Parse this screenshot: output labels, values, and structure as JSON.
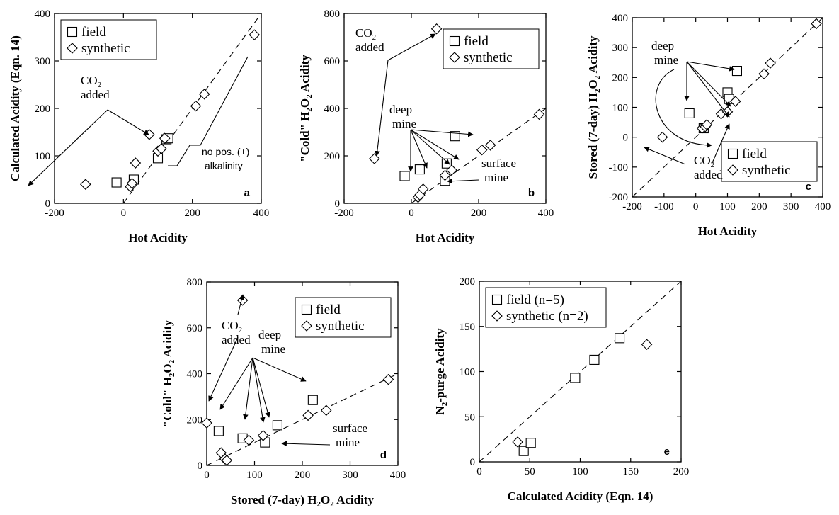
{
  "chart_data": [
    {
      "id": "a",
      "type": "scatter",
      "panel_label": "a",
      "xlabel": "Hot Acidity",
      "ylabel": "Calculated Acidity (Eqn. 14)",
      "xlim": [
        -200,
        400
      ],
      "ylim": [
        0,
        400
      ],
      "xticks": [
        -200,
        0,
        200,
        400
      ],
      "yticks": [
        0,
        100,
        200,
        300,
        400
      ],
      "legend": [
        "field",
        "synthetic"
      ],
      "legend_position": "top-left",
      "series": [
        {
          "name": "field",
          "marker": "square",
          "x": [
            -20,
            30,
            100,
            125,
            130
          ],
          "y": [
            44,
            50,
            95,
            135,
            137
          ]
        },
        {
          "name": "synthetic",
          "marker": "diamond",
          "x": [
            -110,
            20,
            25,
            35,
            75,
            100,
            110,
            120,
            210,
            235,
            380
          ],
          "y": [
            40,
            35,
            42,
            85,
            145,
            110,
            115,
            137,
            205,
            230,
            355
          ]
        }
      ],
      "reference_line": "1:1",
      "annotations": [
        {
          "text": "CO",
          "sub": "2",
          "text2": "added"
        },
        {
          "text": "no pos. (+)",
          "text2": "alkalinity"
        }
      ]
    },
    {
      "id": "b",
      "type": "scatter",
      "panel_label": "b",
      "xlabel": "Hot Acidity",
      "ylabel": "\"Cold\" H2O2 Acidity",
      "ylabel_parts": [
        "\"Cold\" H",
        "2",
        "O",
        "2",
        " Acidity"
      ],
      "xlim": [
        -200,
        400
      ],
      "ylim": [
        0,
        800
      ],
      "xticks": [
        -200,
        0,
        200,
        400
      ],
      "yticks": [
        0,
        200,
        400,
        600,
        800
      ],
      "legend": [
        "field",
        "synthetic"
      ],
      "legend_position": "top-right",
      "series": [
        {
          "name": "field",
          "marker": "square",
          "x": [
            -20,
            25,
            100,
            105,
            130
          ],
          "y": [
            115,
            143,
            95,
            168,
            283
          ]
        },
        {
          "name": "synthetic",
          "marker": "diamond",
          "x": [
            -110,
            20,
            25,
            35,
            75,
            100,
            120,
            210,
            235,
            380
          ],
          "y": [
            188,
            25,
            35,
            60,
            735,
            118,
            140,
            225,
            245,
            375
          ]
        }
      ],
      "reference_line": "1:1",
      "annotations": [
        {
          "text": "CO",
          "sub": "2",
          "text2": "added"
        },
        {
          "text": "deep",
          "text2": "mine"
        },
        {
          "text": "surface",
          "text2": "mine"
        }
      ]
    },
    {
      "id": "c",
      "type": "scatter",
      "panel_label": "c",
      "xlabel": "Hot Acidity",
      "ylabel": "Stored (7-day)  H2O2 Acidity",
      "ylabel_parts": [
        "Stored (7-day)  H",
        "2",
        "O",
        "2",
        " Acidity"
      ],
      "xlim": [
        -200,
        400
      ],
      "ylim": [
        -200,
        400
      ],
      "xticks": [
        -200,
        -100,
        0,
        100,
        200,
        300,
        400
      ],
      "yticks": [
        -200,
        -100,
        0,
        100,
        200,
        300,
        400
      ],
      "legend": [
        "field",
        "synthetic"
      ],
      "legend_position": "bottom-right",
      "series": [
        {
          "name": "field",
          "marker": "square",
          "x": [
            -20,
            25,
            100,
            105,
            130
          ],
          "y": [
            80,
            30,
            150,
            128,
            222
          ]
        },
        {
          "name": "synthetic",
          "marker": "diamond",
          "x": [
            -105,
            20,
            30,
            35,
            80,
            100,
            125,
            215,
            235,
            380
          ],
          "y": [
            0,
            30,
            35,
            42,
            78,
            85,
            120,
            212,
            248,
            380
          ]
        }
      ],
      "reference_line": "1:1",
      "annotations": [
        {
          "text": "deep",
          "text2": "mine"
        },
        {
          "text": "CO",
          "sub": "2",
          "text2": "added"
        }
      ]
    },
    {
      "id": "d",
      "type": "scatter",
      "panel_label": "d",
      "xlabel": "Stored (7-day) H2O2 Acidity",
      "xlabel_parts": [
        "Stored (7-day) H",
        "2",
        "O",
        "2",
        " Acidity"
      ],
      "ylabel": "\"Cold\" H2O2 Acidity",
      "ylabel_parts": [
        "\"Cold\" H",
        "2",
        "O",
        "2",
        " Acidity"
      ],
      "xlim": [
        0,
        400
      ],
      "ylim": [
        0,
        800
      ],
      "xticks": [
        0,
        100,
        200,
        300,
        400
      ],
      "yticks": [
        0,
        200,
        400,
        600,
        800
      ],
      "legend": [
        "field",
        "synthetic"
      ],
      "legend_position": "top-right",
      "series": [
        {
          "name": "field",
          "marker": "square",
          "x": [
            25,
            75,
            122,
            148,
            222
          ],
          "y": [
            150,
            118,
            100,
            175,
            285
          ]
        },
        {
          "name": "synthetic",
          "marker": "diamond",
          "x": [
            0,
            30,
            38,
            42,
            75,
            88,
            118,
            212,
            250,
            380
          ],
          "y": [
            185,
            55,
            28,
            22,
            720,
            110,
            130,
            218,
            240,
            375
          ]
        }
      ],
      "reference_line": "1:1",
      "annotations": [
        {
          "text": "CO",
          "sub": "2",
          "text2": "added"
        },
        {
          "text": "deep",
          "text2": "mine"
        },
        {
          "text": "surface",
          "text2": "mine"
        }
      ]
    },
    {
      "id": "e",
      "type": "scatter",
      "panel_label": "e",
      "xlabel": "Calculated Acidity (Eqn. 14)",
      "ylabel": "N2-purge Acidity",
      "ylabel_parts": [
        "N",
        "2",
        "-purge Acidity"
      ],
      "xlim": [
        0,
        200
      ],
      "ylim": [
        0,
        200
      ],
      "xticks": [
        0,
        50,
        100,
        150,
        200
      ],
      "yticks": [
        0,
        50,
        100,
        150,
        200
      ],
      "legend": [
        "field (n=5)",
        "synthetic (n=2)"
      ],
      "legend_position": "top-left",
      "series": [
        {
          "name": "field (n=5)",
          "marker": "square",
          "x": [
            44,
            51,
            95,
            114,
            139
          ],
          "y": [
            12,
            21,
            93,
            113,
            137
          ]
        },
        {
          "name": "synthetic (n=2)",
          "marker": "diamond",
          "x": [
            38,
            166
          ],
          "y": [
            22,
            130
          ]
        }
      ],
      "reference_line": "1:1",
      "annotations": []
    }
  ]
}
